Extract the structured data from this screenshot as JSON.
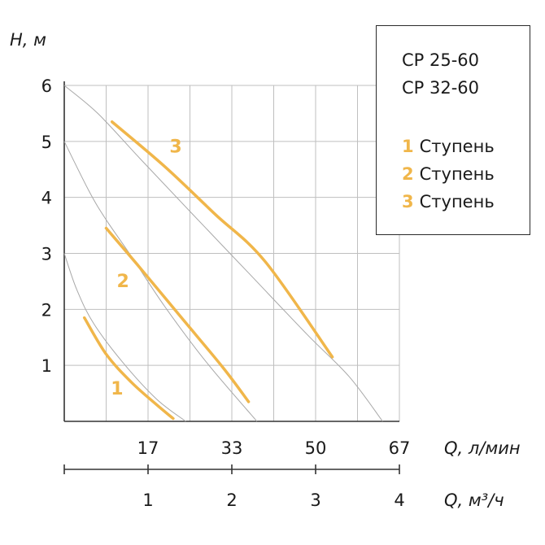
{
  "colors": {
    "accent": "#f0b64a",
    "grid": "#bfbfbf",
    "axis": "#333333",
    "envelope": "#a8a8a8",
    "text": "#1a1a1a"
  },
  "legend": {
    "models": [
      "CP 25-60",
      "CP 32-60"
    ],
    "items": [
      {
        "num": "1",
        "label": "Ступень"
      },
      {
        "num": "2",
        "label": "Ступень"
      },
      {
        "num": "3",
        "label": "Ступень"
      }
    ]
  },
  "chart_data": {
    "type": "line",
    "ylabel": "H, м",
    "xlabel": "Q, л/мин",
    "x2label": "Q, м³/ч",
    "ylim": [
      0,
      6
    ],
    "xlim": [
      0,
      4
    ],
    "grid": true,
    "legend_position": "top-right",
    "y_ticks": [
      "1",
      "2",
      "3",
      "4",
      "5",
      "6"
    ],
    "x_ticks_lmin": [
      "17",
      "33",
      "50",
      "67"
    ],
    "x_ticks_m3h": [
      "1",
      "2",
      "3",
      "4"
    ],
    "series": [
      {
        "name": "1",
        "x": [
          0.24,
          0.5,
          0.8,
          1.1,
          1.3
        ],
        "y": [
          1.85,
          1.2,
          0.7,
          0.3,
          0.05
        ]
      },
      {
        "name": "2",
        "x": [
          0.5,
          0.9,
          1.4,
          1.9,
          2.2
        ],
        "y": [
          3.45,
          2.75,
          1.85,
          0.95,
          0.35
        ]
      },
      {
        "name": "3",
        "x": [
          0.57,
          1.2,
          1.8,
          2.4,
          3.2
        ],
        "y": [
          5.35,
          4.55,
          3.7,
          2.85,
          1.15
        ]
      }
    ],
    "envelopes": [
      {
        "x": [
          0,
          0.4,
          0.9,
          1.5,
          2.2,
          2.9,
          3.4,
          3.8
        ],
        "y": [
          6.0,
          5.5,
          4.7,
          3.75,
          2.65,
          1.55,
          0.8,
          0.0
        ]
      },
      {
        "x": [
          0,
          0.3,
          0.5,
          0.8,
          1.2,
          1.7,
          2.3
        ],
        "y": [
          5.0,
          4.1,
          3.6,
          2.95,
          2.05,
          1.05,
          0.0
        ]
      },
      {
        "x": [
          0,
          0.15,
          0.35,
          0.7,
          1.1,
          1.45
        ],
        "y": [
          3.0,
          2.35,
          1.75,
          1.05,
          0.4,
          0.0
        ]
      }
    ],
    "stage_labels": [
      {
        "text": "1",
        "x": 0.63,
        "y": 0.48
      },
      {
        "text": "2",
        "x": 0.7,
        "y": 2.4
      },
      {
        "text": "3",
        "x": 1.33,
        "y": 4.8
      }
    ]
  }
}
